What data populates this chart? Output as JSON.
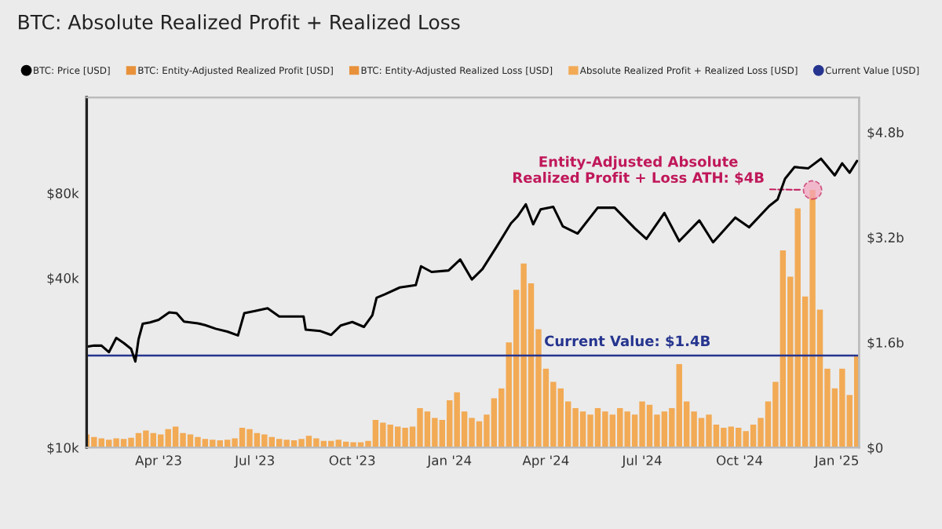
{
  "chart_data": {
    "type": "bar",
    "title": "BTC: Absolute Realized Profit + Realized Loss",
    "xlim": [
      "2023-01-23",
      "2025-01-22"
    ],
    "xticks": [
      {
        "value": "2023-04-01",
        "label": "Apr '23"
      },
      {
        "value": "2023-07-01",
        "label": "Jul '23"
      },
      {
        "value": "2023-10-01",
        "label": "Oct '23"
      },
      {
        "value": "2024-01-01",
        "label": "Jan '24"
      },
      {
        "value": "2024-04-01",
        "label": "Apr '24"
      },
      {
        "value": "2024-07-01",
        "label": "Jul '24"
      },
      {
        "value": "2024-10-01",
        "label": "Oct '24"
      },
      {
        "value": "2025-01-01",
        "label": "Jan '25"
      }
    ],
    "log": "y",
    "ylim": [
      10,
      175
    ],
    "yticks": [
      {
        "value": 10,
        "label": "$10k"
      },
      {
        "value": 40,
        "label": "$40k"
      },
      {
        "value": 80,
        "label": "$80k"
      }
    ],
    "y2lim": [
      0,
      5.33
    ],
    "y2ticks": [
      {
        "value": 0,
        "label": "$0"
      },
      {
        "value": 1.6,
        "label": "$1.6b"
      },
      {
        "value": 3.2,
        "label": "$3.2b"
      },
      {
        "value": 4.8,
        "label": "$4.8b"
      }
    ],
    "legend": "top",
    "grid": false,
    "series": [
      {
        "name": "BTC: Price [USD]",
        "type": "line",
        "color": "#000000",
        "x": [
          "2023-01-23",
          "2023-01-30",
          "2023-02-06",
          "2023-02-13",
          "2023-02-20",
          "2023-02-27",
          "2023-03-06",
          "2023-03-10",
          "2023-03-13",
          "2023-03-17",
          "2023-03-24",
          "2023-04-01",
          "2023-04-11",
          "2023-04-18",
          "2023-04-25",
          "2023-05-08",
          "2023-05-15",
          "2023-05-25",
          "2023-06-05",
          "2023-06-15",
          "2023-06-21",
          "2023-07-01",
          "2023-07-13",
          "2023-07-24",
          "2023-08-07",
          "2023-08-16",
          "2023-08-18",
          "2023-09-01",
          "2023-09-11",
          "2023-09-20",
          "2023-10-01",
          "2023-10-12",
          "2023-10-20",
          "2023-10-24",
          "2023-11-01",
          "2023-11-15",
          "2023-11-30",
          "2023-12-05",
          "2023-12-15",
          "2023-12-31",
          "2024-01-11",
          "2024-01-22",
          "2024-02-01",
          "2024-02-15",
          "2024-02-28",
          "2024-03-05",
          "2024-03-13",
          "2024-03-20",
          "2024-03-27",
          "2024-04-08",
          "2024-04-17",
          "2024-05-01",
          "2024-05-20",
          "2024-06-05",
          "2024-06-24",
          "2024-07-05",
          "2024-07-22",
          "2024-08-05",
          "2024-08-24",
          "2024-09-06",
          "2024-09-27",
          "2024-10-10",
          "2024-10-29",
          "2024-11-06",
          "2024-11-13",
          "2024-11-22",
          "2024-12-05",
          "2024-12-17",
          "2024-12-30",
          "2025-01-06",
          "2025-01-13",
          "2025-01-20"
        ],
        "values": [
          22.8,
          23.0,
          23.0,
          21.8,
          24.5,
          23.5,
          22.4,
          20.2,
          24.2,
          27.5,
          27.8,
          28.4,
          30.2,
          30.0,
          28.0,
          27.6,
          27.2,
          26.4,
          25.8,
          25.0,
          30.0,
          30.5,
          31.2,
          29.2,
          29.2,
          29.2,
          26.2,
          25.9,
          25.1,
          27.1,
          27.9,
          26.8,
          29.5,
          34.0,
          35.0,
          37.0,
          37.7,
          44.0,
          42.0,
          42.5,
          46.5,
          39.5,
          43.0,
          52.0,
          62.5,
          66.0,
          73.0,
          62.0,
          70.0,
          71.5,
          61.0,
          57.5,
          71.0,
          71.0,
          60.0,
          55.0,
          68.0,
          54.0,
          64.0,
          53.5,
          65.5,
          60.5,
          72.0,
          76.0,
          90.0,
          99.0,
          98.0,
          106.0,
          92.5,
          102.0,
          94.5,
          104.0
        ]
      },
      {
        "name": "BTC: Entity-Adjusted Realized Profit [USD]",
        "axis": "y2",
        "color": "#e8913a"
      },
      {
        "name": "BTC: Entity-Adjusted Realized Loss [USD]",
        "axis": "y2",
        "color": "#e8913a"
      },
      {
        "name": "Absolute Realized Profit + Realized Loss [USD]",
        "axis": "y2",
        "color": "#f2aa55",
        "x": [
          "2023-01-23",
          "2023-01-30",
          "2023-02-06",
          "2023-02-13",
          "2023-02-20",
          "2023-02-27",
          "2023-03-06",
          "2023-03-13",
          "2023-03-20",
          "2023-03-27",
          "2023-04-03",
          "2023-04-10",
          "2023-04-17",
          "2023-04-24",
          "2023-05-01",
          "2023-05-08",
          "2023-05-15",
          "2023-05-22",
          "2023-05-29",
          "2023-06-05",
          "2023-06-12",
          "2023-06-19",
          "2023-06-26",
          "2023-07-03",
          "2023-07-10",
          "2023-07-17",
          "2023-07-24",
          "2023-07-31",
          "2023-08-07",
          "2023-08-14",
          "2023-08-21",
          "2023-08-28",
          "2023-09-04",
          "2023-09-11",
          "2023-09-18",
          "2023-09-25",
          "2023-10-02",
          "2023-10-09",
          "2023-10-16",
          "2023-10-23",
          "2023-10-30",
          "2023-11-06",
          "2023-11-13",
          "2023-11-20",
          "2023-11-27",
          "2023-12-04",
          "2023-12-11",
          "2023-12-18",
          "2023-12-25",
          "2024-01-01",
          "2024-01-08",
          "2024-01-15",
          "2024-01-22",
          "2024-01-29",
          "2024-02-05",
          "2024-02-12",
          "2024-02-19",
          "2024-02-26",
          "2024-03-04",
          "2024-03-11",
          "2024-03-18",
          "2024-03-25",
          "2024-04-01",
          "2024-04-08",
          "2024-04-15",
          "2024-04-22",
          "2024-04-29",
          "2024-05-06",
          "2024-05-13",
          "2024-05-20",
          "2024-05-27",
          "2024-06-03",
          "2024-06-10",
          "2024-06-17",
          "2024-06-24",
          "2024-07-01",
          "2024-07-08",
          "2024-07-15",
          "2024-07-22",
          "2024-07-29",
          "2024-08-05",
          "2024-08-12",
          "2024-08-19",
          "2024-08-26",
          "2024-09-02",
          "2024-09-09",
          "2024-09-16",
          "2024-09-23",
          "2024-09-30",
          "2024-10-07",
          "2024-10-14",
          "2024-10-21",
          "2024-10-28",
          "2024-11-04",
          "2024-11-11",
          "2024-11-18",
          "2024-11-25",
          "2024-12-02",
          "2024-12-09",
          "2024-12-16",
          "2024-12-23",
          "2024-12-30",
          "2025-01-06",
          "2025-01-13",
          "2025-01-20"
        ],
        "values": [
          0.2,
          0.16,
          0.14,
          0.12,
          0.14,
          0.13,
          0.15,
          0.22,
          0.26,
          0.22,
          0.2,
          0.28,
          0.32,
          0.22,
          0.2,
          0.16,
          0.13,
          0.12,
          0.11,
          0.12,
          0.14,
          0.3,
          0.28,
          0.22,
          0.2,
          0.16,
          0.13,
          0.12,
          0.11,
          0.13,
          0.18,
          0.14,
          0.1,
          0.1,
          0.12,
          0.09,
          0.08,
          0.08,
          0.1,
          0.42,
          0.38,
          0.35,
          0.32,
          0.3,
          0.32,
          0.6,
          0.55,
          0.45,
          0.42,
          0.72,
          0.84,
          0.55,
          0.45,
          0.4,
          0.5,
          0.75,
          0.9,
          1.6,
          2.4,
          2.8,
          2.5,
          1.8,
          1.2,
          1.0,
          0.9,
          0.7,
          0.6,
          0.55,
          0.5,
          0.6,
          0.55,
          0.5,
          0.6,
          0.55,
          0.5,
          0.7,
          0.65,
          0.5,
          0.55,
          0.6,
          1.27,
          0.7,
          0.55,
          0.45,
          0.5,
          0.35,
          0.3,
          0.32,
          0.3,
          0.25,
          0.35,
          0.45,
          0.7,
          1.0,
          3.0,
          2.6,
          3.64,
          2.3,
          3.92,
          2.1,
          1.2,
          0.9,
          1.2,
          0.8,
          1.4
        ]
      },
      {
        "name": "Current Value [USD]",
        "type": "line",
        "axis": "y2",
        "color": "#26358f",
        "x": [
          "2023-01-23",
          "2025-01-22"
        ],
        "values": [
          1.4,
          1.4
        ]
      }
    ],
    "annotations": [
      "Entity-Adjusted Absolute\nRealized Profit + Loss ATH: $4B",
      "Current Value: $1.4B"
    ]
  }
}
